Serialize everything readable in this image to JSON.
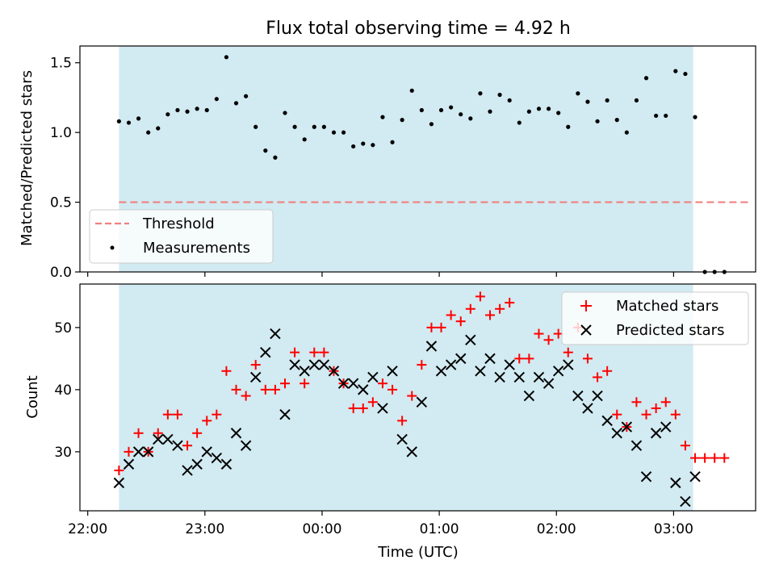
{
  "chart_data": [
    {
      "type": "scatter",
      "title": "Flux total observing time = 4.92 h",
      "xlabel": "",
      "ylabel": "Matched/Predicted stars",
      "xlim": [
        "21:56",
        "03:42"
      ],
      "ylim": [
        0,
        1.62
      ],
      "yticks": [
        0.0,
        0.5,
        1.0,
        1.5
      ],
      "ytick_labels": [
        "0.0",
        "0.5",
        "1.0",
        "1.5"
      ],
      "shaded_span": [
        "22:16",
        "03:10"
      ],
      "shaded_color": "#add8e6",
      "legend_position": "lower-left",
      "threshold": {
        "name": "Threshold",
        "value": 0.5,
        "x_start": "22:16",
        "x_end": "03:40",
        "color": "#f08080",
        "style": "dashed"
      },
      "series": [
        {
          "name": "Measurements",
          "color": "#000000",
          "marker": "dot",
          "x": [
            "22:16",
            "22:21",
            "22:26",
            "22:31",
            "22:36",
            "22:41",
            "22:46",
            "22:51",
            "22:56",
            "23:01",
            "23:06",
            "23:11",
            "23:16",
            "23:21",
            "23:26",
            "23:31",
            "23:36",
            "23:41",
            "23:46",
            "23:51",
            "23:56",
            "00:01",
            "00:06",
            "00:11",
            "00:16",
            "00:21",
            "00:26",
            "00:31",
            "00:36",
            "00:41",
            "00:46",
            "00:51",
            "00:56",
            "01:01",
            "01:06",
            "01:11",
            "01:16",
            "01:21",
            "01:26",
            "01:31",
            "01:36",
            "01:41",
            "01:46",
            "01:51",
            "01:56",
            "02:01",
            "02:06",
            "02:11",
            "02:16",
            "02:21",
            "02:26",
            "02:31",
            "02:36",
            "02:41",
            "02:46",
            "02:51",
            "02:56",
            "03:01",
            "03:06",
            "03:11",
            "03:16",
            "03:21",
            "03:26"
          ],
          "y": [
            1.08,
            1.07,
            1.1,
            1.0,
            1.03,
            1.13,
            1.16,
            1.15,
            1.17,
            1.16,
            1.24,
            1.54,
            1.21,
            1.26,
            1.04,
            0.87,
            0.82,
            1.14,
            1.04,
            0.95,
            1.04,
            1.04,
            1.0,
            1.0,
            0.9,
            0.92,
            0.91,
            1.11,
            0.93,
            1.09,
            1.3,
            1.16,
            1.06,
            1.16,
            1.18,
            1.13,
            1.1,
            1.28,
            1.15,
            1.27,
            1.23,
            1.07,
            1.15,
            1.17,
            1.17,
            1.14,
            1.04,
            1.28,
            1.22,
            1.08,
            1.23,
            1.09,
            1.0,
            1.23,
            1.39,
            1.12,
            1.12,
            1.44,
            1.42,
            1.11,
            0.0,
            0.0,
            0.0
          ]
        }
      ]
    },
    {
      "type": "scatter",
      "title": "",
      "xlabel": "Time (UTC)",
      "ylabel": "Count",
      "xlim": [
        "21:56",
        "03:42"
      ],
      "ylim": [
        20.5,
        57
      ],
      "xticks": [
        "22:00",
        "23:00",
        "00:00",
        "01:00",
        "02:00",
        "03:00"
      ],
      "yticks": [
        30,
        40,
        50
      ],
      "ytick_labels": [
        "30",
        "40",
        "50"
      ],
      "shaded_span": [
        "22:16",
        "03:10"
      ],
      "shaded_color": "#add8e6",
      "legend_position": "top-right",
      "series": [
        {
          "name": "Matched stars",
          "color": "#ff0000",
          "marker": "plus",
          "x": [
            "22:16",
            "22:21",
            "22:26",
            "22:31",
            "22:36",
            "22:41",
            "22:46",
            "22:51",
            "22:56",
            "23:01",
            "23:06",
            "23:11",
            "23:16",
            "23:21",
            "23:26",
            "23:31",
            "23:36",
            "23:41",
            "23:46",
            "23:51",
            "23:56",
            "00:01",
            "00:06",
            "00:11",
            "00:16",
            "00:21",
            "00:26",
            "00:31",
            "00:36",
            "00:41",
            "00:46",
            "00:51",
            "00:56",
            "01:01",
            "01:06",
            "01:11",
            "01:16",
            "01:21",
            "01:26",
            "01:31",
            "01:36",
            "01:41",
            "01:46",
            "01:51",
            "01:56",
            "02:01",
            "02:06",
            "02:11",
            "02:16",
            "02:21",
            "02:26",
            "02:31",
            "02:36",
            "02:41",
            "02:46",
            "02:51",
            "02:56",
            "03:01",
            "03:06",
            "03:11",
            "03:16",
            "03:21",
            "03:26"
          ],
          "y": [
            27,
            30,
            33,
            30,
            33,
            36,
            36,
            31,
            33,
            35,
            36,
            43,
            40,
            39,
            44,
            40,
            40,
            41,
            46,
            41,
            46,
            46,
            43,
            41,
            37,
            37,
            38,
            41,
            40,
            35,
            39,
            44,
            50,
            50,
            52,
            51,
            53,
            55,
            52,
            53,
            54,
            45,
            45,
            49,
            48,
            49,
            46,
            50,
            45,
            42,
            43,
            36,
            34,
            38,
            36,
            37,
            38,
            36,
            31,
            29,
            29,
            29,
            29
          ]
        },
        {
          "name": "Predicted stars",
          "color": "#000000",
          "marker": "x",
          "x": [
            "22:16",
            "22:21",
            "22:26",
            "22:31",
            "22:36",
            "22:41",
            "22:46",
            "22:51",
            "22:56",
            "23:01",
            "23:06",
            "23:11",
            "23:16",
            "23:21",
            "23:26",
            "23:31",
            "23:36",
            "23:41",
            "23:46",
            "23:51",
            "23:56",
            "00:01",
            "00:06",
            "00:11",
            "00:16",
            "00:21",
            "00:26",
            "00:31",
            "00:36",
            "00:41",
            "00:46",
            "00:51",
            "00:56",
            "01:01",
            "01:06",
            "01:11",
            "01:16",
            "01:21",
            "01:26",
            "01:31",
            "01:36",
            "01:41",
            "01:46",
            "01:51",
            "01:56",
            "02:01",
            "02:06",
            "02:11",
            "02:16",
            "02:21",
            "02:26",
            "02:31",
            "02:36",
            "02:41",
            "02:46",
            "02:51",
            "02:56",
            "03:01",
            "03:06",
            "03:11"
          ],
          "y": [
            25,
            28,
            30,
            30,
            32,
            32,
            31,
            27,
            28,
            30,
            29,
            28,
            33,
            31,
            42,
            46,
            49,
            36,
            44,
            43,
            44,
            44,
            43,
            41,
            41,
            40,
            42,
            37,
            43,
            32,
            30,
            38,
            47,
            43,
            44,
            45,
            48,
            43,
            45,
            42,
            44,
            42,
            39,
            42,
            41,
            43,
            44,
            39,
            37,
            39,
            35,
            33,
            34,
            31,
            26,
            33,
            34,
            25,
            22,
            26
          ]
        }
      ]
    }
  ]
}
